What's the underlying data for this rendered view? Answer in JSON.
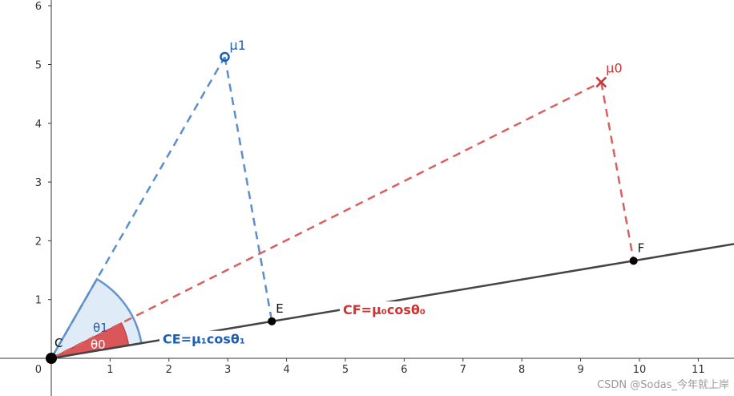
{
  "axes": {
    "x_ticks": [
      0,
      1,
      2,
      3,
      4,
      5,
      6,
      7,
      8,
      9,
      10,
      11
    ],
    "y_ticks": [
      1,
      2,
      3,
      4,
      5,
      6
    ],
    "origin_label": "0"
  },
  "points": {
    "C": {
      "label": "C",
      "x": 0,
      "y": 0
    },
    "E": {
      "label": "E",
      "x": 3.75,
      "y": 0.63
    },
    "F": {
      "label": "F",
      "x": 9.9,
      "y": 1.66
    },
    "mu1": {
      "label": "μ1",
      "x": 2.95,
      "y": 5.13
    },
    "mu0": {
      "label": "μ0",
      "x": 9.35,
      "y": 4.7
    }
  },
  "angles": {
    "theta1": "θ1",
    "theta0": "θ0"
  },
  "formulas": {
    "ce": "CE=μ₁cosθ₁",
    "cf": "CF=μ₀cosθ₀"
  },
  "colors": {
    "blue": "#5b8fcc",
    "blue_text": "#1f5fb0",
    "red": "#d9605d",
    "red_text": "#cc3333",
    "line": "#444444",
    "blue_fill": "#dfeaf8",
    "red_fill": "#d93d3d"
  },
  "watermark": "CSDN @Sodas_今年就上岸"
}
